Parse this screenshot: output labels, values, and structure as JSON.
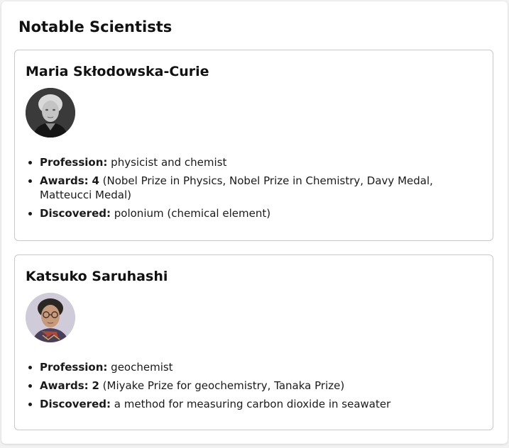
{
  "page": {
    "title": "Notable Scientists"
  },
  "scientists": [
    {
      "name": "Maria Skłodowska-Curie",
      "photo": "portrait-photo-icon",
      "profession_label": "Profession:",
      "profession": "physicist and chemist",
      "awards_label": "Awards:",
      "awards_count": "4",
      "awards_list": "(Nobel Prize in Physics, Nobel Prize in Chemistry, Davy Medal, Matteucci Medal)",
      "discovered_label": "Discovered:",
      "discovered": "polonium (chemical element)"
    },
    {
      "name": "Katsuko Saruhashi",
      "photo": "portrait-photo-icon",
      "profession_label": "Profession:",
      "profession": "geochemist",
      "awards_label": "Awards:",
      "awards_count": "2",
      "awards_list": "(Miyake Prize for geochemistry, Tanaka Prize)",
      "discovered_label": "Discovered:",
      "discovered": "a method for measuring carbon dioxide in seawater"
    }
  ],
  "colors": {
    "card_border": "#c8c8c8",
    "text": "#1a1a1a",
    "background": "#ffffff"
  }
}
